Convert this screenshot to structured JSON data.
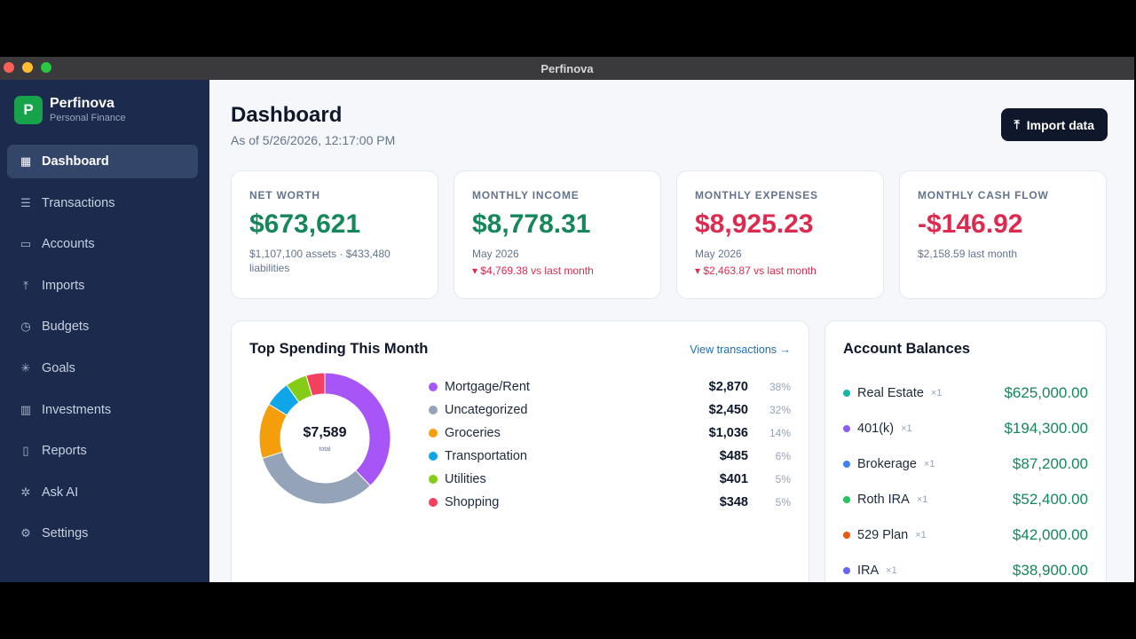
{
  "window": {
    "title": "Perfinova"
  },
  "brand": {
    "logo_letter": "P",
    "name": "Perfinova",
    "subtitle": "Personal Finance"
  },
  "sidebar": {
    "items": [
      {
        "label": "Dashboard",
        "icon": "grid-icon",
        "glyph": "▦",
        "active": true
      },
      {
        "label": "Transactions",
        "icon": "list-icon",
        "glyph": "☰"
      },
      {
        "label": "Accounts",
        "icon": "card-icon",
        "glyph": "▭"
      },
      {
        "label": "Imports",
        "icon": "upload-icon",
        "glyph": "⤒"
      },
      {
        "label": "Budgets",
        "icon": "clock-icon",
        "glyph": "◷"
      },
      {
        "label": "Goals",
        "icon": "sparkle-icon",
        "glyph": "✳"
      },
      {
        "label": "Investments",
        "icon": "bar-chart-icon",
        "glyph": "▥"
      },
      {
        "label": "Reports",
        "icon": "document-icon",
        "glyph": "▯"
      },
      {
        "label": "Ask AI",
        "icon": "sparkles-icon",
        "glyph": "✲"
      },
      {
        "label": "Settings",
        "icon": "gear-icon",
        "glyph": "⚙"
      }
    ]
  },
  "header": {
    "title": "Dashboard",
    "subtitle": "As of 5/26/2026, 12:17:00 PM",
    "import_label": "Import data",
    "import_icon": "⤒"
  },
  "stats": [
    {
      "label": "NET WORTH",
      "value": "$673,621",
      "tone": "green",
      "sub": "$1,107,100 assets · $433,480 liabilities",
      "change": ""
    },
    {
      "label": "MONTHLY INCOME",
      "value": "$8,778.31",
      "tone": "green",
      "sub": "May 2026",
      "change": "▾ $4,769.38 vs last month"
    },
    {
      "label": "MONTHLY EXPENSES",
      "value": "$8,925.23",
      "tone": "red",
      "sub": "May 2026",
      "change": "▾ $2,463.87 vs last month"
    },
    {
      "label": "MONTHLY CASH FLOW",
      "value": "-$146.92",
      "tone": "red",
      "sub": "$2,158.59 last month",
      "change": ""
    }
  ],
  "spending": {
    "title": "Top Spending This Month",
    "link": "View transactions →",
    "total": "$7,589",
    "total_caption": "total",
    "categories": [
      {
        "name": "Mortgage/Rent",
        "amount": "$2,870",
        "pct": "38%",
        "value": 2870,
        "color": "#a855f7"
      },
      {
        "name": "Uncategorized",
        "amount": "$2,450",
        "pct": "32%",
        "value": 2450,
        "color": "#94a3b8"
      },
      {
        "name": "Groceries",
        "amount": "$1,036",
        "pct": "14%",
        "value": 1036,
        "color": "#f59e0b"
      },
      {
        "name": "Transportation",
        "amount": "$485",
        "pct": "6%",
        "value": 485,
        "color": "#0ea5e9"
      },
      {
        "name": "Utilities",
        "amount": "$401",
        "pct": "5%",
        "value": 401,
        "color": "#84cc16"
      },
      {
        "name": "Shopping",
        "amount": "$348",
        "pct": "5%",
        "value": 348,
        "color": "#f43f5e"
      }
    ]
  },
  "accounts": {
    "title": "Account Balances",
    "items": [
      {
        "name": "Real Estate",
        "count": "×1",
        "amount": "$625,000.00",
        "color": "#14b8a6"
      },
      {
        "name": "401(k)",
        "count": "×1",
        "amount": "$194,300.00",
        "color": "#8b5cf6"
      },
      {
        "name": "Brokerage",
        "count": "×1",
        "amount": "$87,200.00",
        "color": "#3b82f6"
      },
      {
        "name": "Roth IRA",
        "count": "×1",
        "amount": "$52,400.00",
        "color": "#22c55e"
      },
      {
        "name": "529 Plan",
        "count": "×1",
        "amount": "$42,000.00",
        "color": "#ea580c"
      },
      {
        "name": "IRA",
        "count": "×1",
        "amount": "$38,900.00",
        "color": "#6366f1"
      }
    ]
  }
}
